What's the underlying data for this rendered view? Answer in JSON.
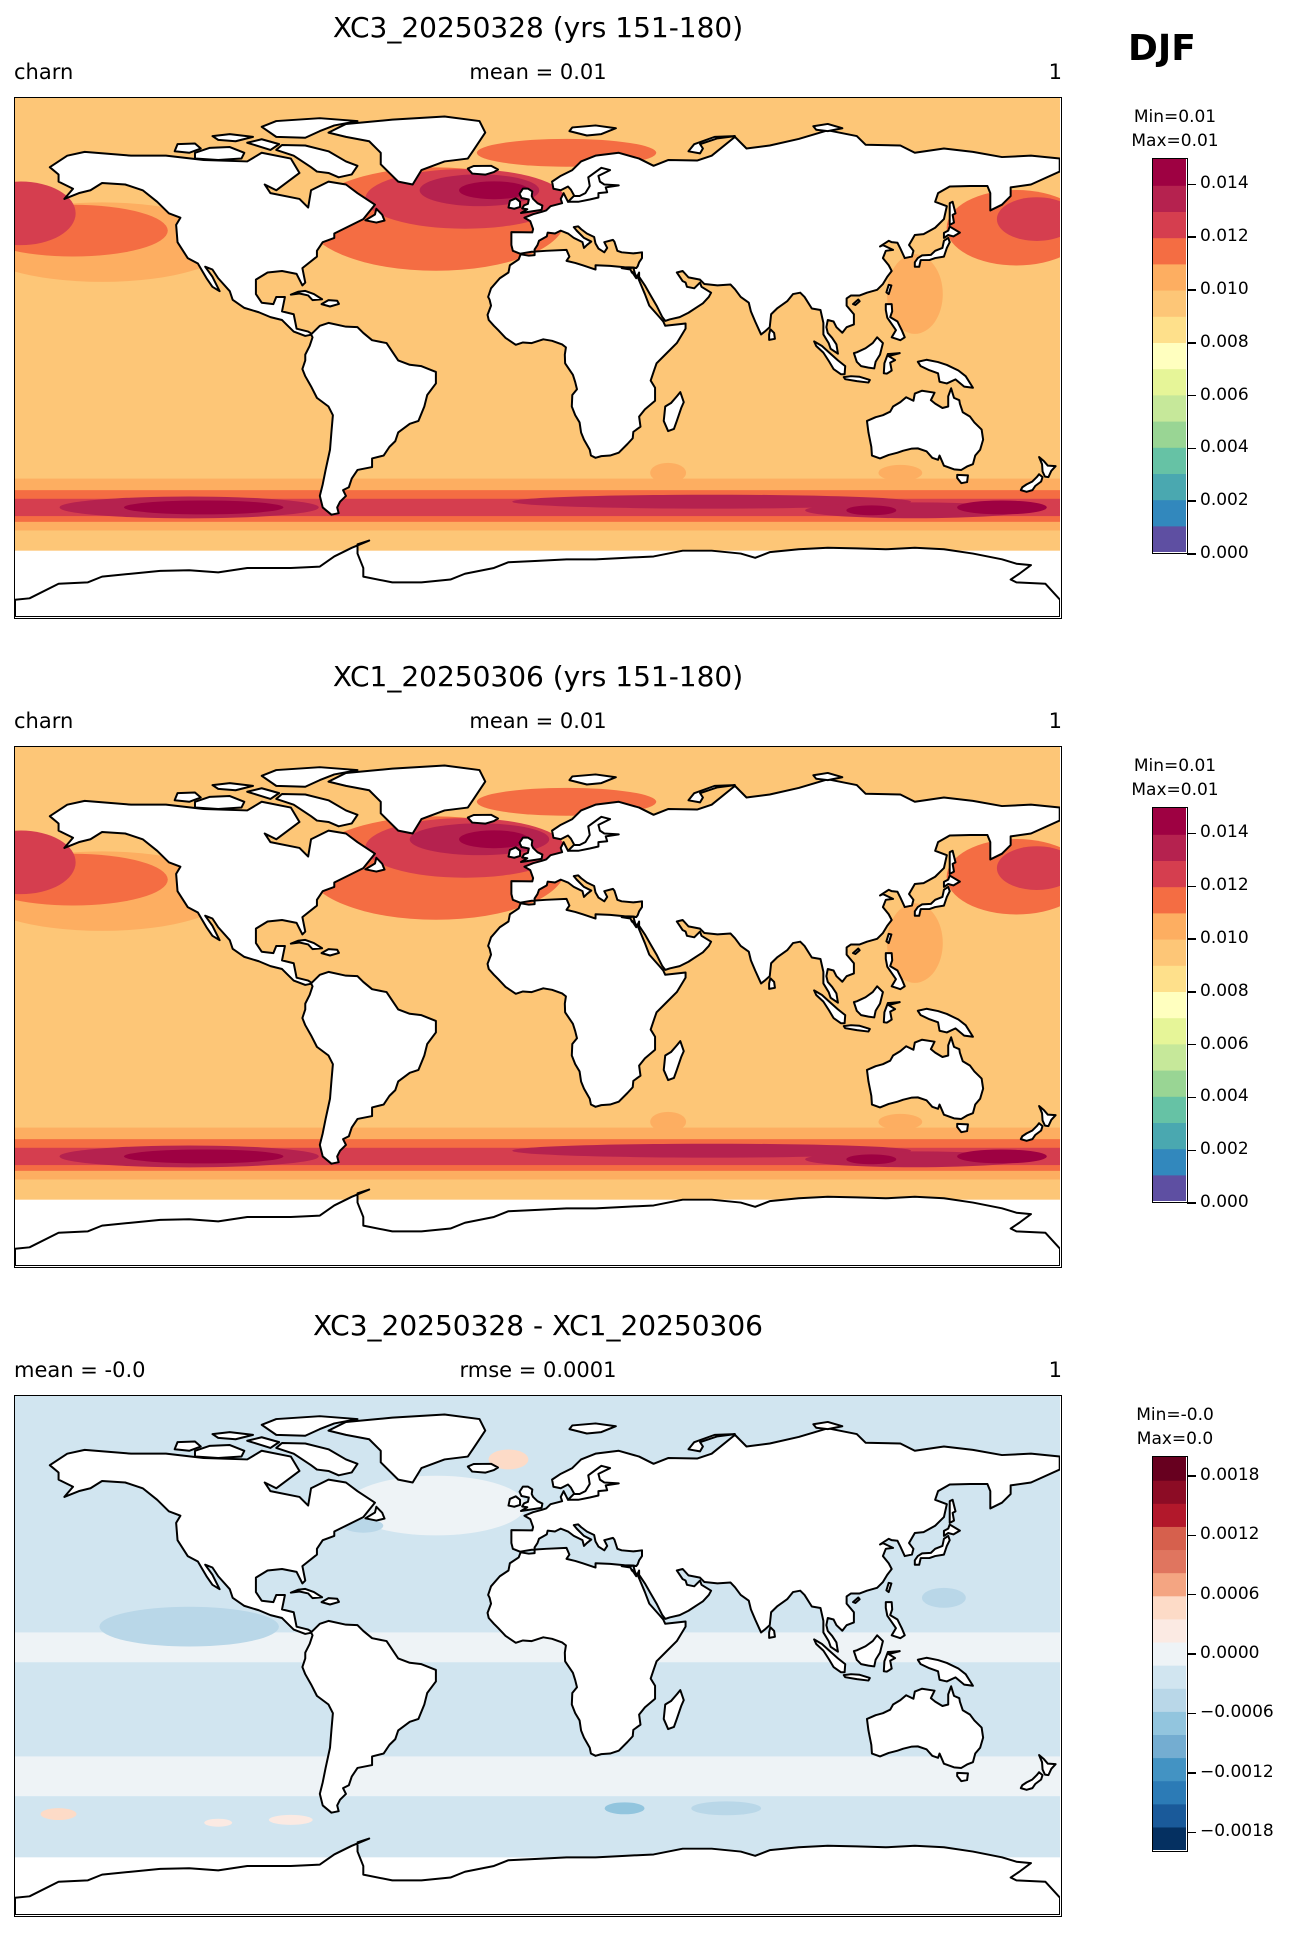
{
  "season": "DJF",
  "panels": [
    {
      "title": "XC3_20250328 (yrs 151-180)",
      "left": "charn",
      "center": "mean = 0.01",
      "right": "1",
      "min_label": "Min=0.01",
      "max_label": "Max=0.01",
      "colorbar": {
        "ticks": [
          "0.014",
          "0.012",
          "0.010",
          "0.008",
          "0.006",
          "0.004",
          "0.002",
          "0.000"
        ],
        "range": [
          0.0,
          0.015
        ],
        "colors": [
          "#5e4fa2",
          "#3288bd",
          "#4aa8b0",
          "#66c2a5",
          "#99d594",
          "#c6e89a",
          "#e6f598",
          "#ffffbf",
          "#fee08b",
          "#fdc677",
          "#fdae61",
          "#f46d43",
          "#d53e4f",
          "#b5224f",
          "#9e0142"
        ]
      }
    },
    {
      "title": "XC1_20250306 (yrs 151-180)",
      "left": "charn",
      "center": "mean = 0.01",
      "right": "1",
      "min_label": "Min=0.01",
      "max_label": "Max=0.01",
      "colorbar": {
        "ticks": [
          "0.014",
          "0.012",
          "0.010",
          "0.008",
          "0.006",
          "0.004",
          "0.002",
          "0.000"
        ],
        "range": [
          0.0,
          0.015
        ],
        "colors": [
          "#5e4fa2",
          "#3288bd",
          "#4aa8b0",
          "#66c2a5",
          "#99d594",
          "#c6e89a",
          "#e6f598",
          "#ffffbf",
          "#fee08b",
          "#fdc677",
          "#fdae61",
          "#f46d43",
          "#d53e4f",
          "#b5224f",
          "#9e0142"
        ]
      }
    },
    {
      "title": "XC3_20250328 - XC1_20250306",
      "left": "mean = -0.0",
      "center": "rmse = 0.0001",
      "right": "1",
      "min_label": "Min=-0.0",
      "max_label": "Max=0.0",
      "colorbar": {
        "ticks": [
          "0.0018",
          "0.0012",
          "0.0006",
          "0.0000",
          "−0.0006",
          "−0.0012",
          "−0.0018"
        ],
        "range": [
          -0.002,
          0.002
        ],
        "colors": [
          "#053061",
          "#1a5a9a",
          "#2c7bb6",
          "#4393c3",
          "#74add1",
          "#92c5de",
          "#b9d7e8",
          "#d1e5f0",
          "#eef3f6",
          "#fbeae3",
          "#fddbc7",
          "#f4a582",
          "#e0755f",
          "#d6604d",
          "#b2182b",
          "#8c0c25",
          "#67001f"
        ]
      }
    }
  ],
  "chart_data": [
    {
      "type": "heatmap",
      "title": "XC3_20250328 (yrs 151-180)",
      "variable": "charn",
      "season": "DJF",
      "stats": {
        "mean": 0.01,
        "min": 0.01,
        "max": 0.01
      },
      "colorbar_range": [
        0.0,
        0.015
      ],
      "colorbar_ticks": [
        0.0,
        0.002,
        0.004,
        0.006,
        0.008,
        0.01,
        0.012,
        0.014
      ],
      "field_description": "global ocean field ~0.010, maxima ~0.014-0.015 in Southern Ocean storm track and North Atlantic/North Pacific"
    },
    {
      "type": "heatmap",
      "title": "XC1_20250306 (yrs 151-180)",
      "variable": "charn",
      "season": "DJF",
      "stats": {
        "mean": 0.01,
        "min": 0.01,
        "max": 0.01
      },
      "colorbar_range": [
        0.0,
        0.015
      ],
      "colorbar_ticks": [
        0.0,
        0.002,
        0.004,
        0.006,
        0.008,
        0.01,
        0.012,
        0.014
      ]
    },
    {
      "type": "heatmap",
      "title": "XC3_20250328 - XC1_20250306",
      "season": "DJF",
      "stats": {
        "mean": -0.0,
        "rmse": 0.0001,
        "min": -0.0,
        "max": 0.0
      },
      "colorbar_range": [
        -0.002,
        0.002
      ],
      "colorbar_ticks": [
        -0.0018,
        -0.0012,
        -0.0006,
        0.0,
        0.0006,
        0.0012,
        0.0018
      ]
    }
  ]
}
